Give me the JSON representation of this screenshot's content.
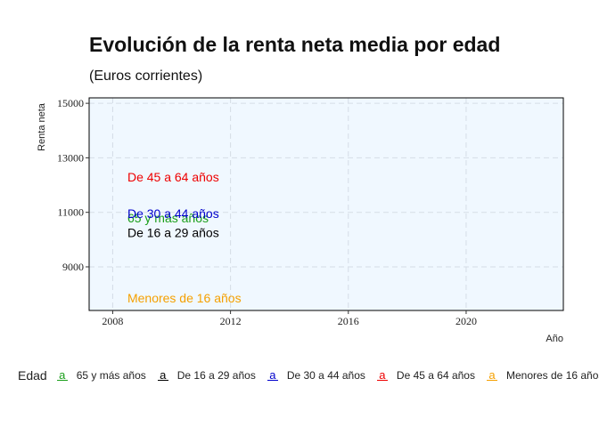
{
  "chart_data": {
    "type": "line",
    "title": "Evolución de la renta neta media por edad",
    "subtitle": "(Euros corrientes)",
    "xlabel": "Año",
    "ylabel": "Renta neta",
    "xlim": [
      2007.2,
      2023.3
    ],
    "ylim": [
      7400,
      15200
    ],
    "x_ticks": [
      2008,
      2012,
      2016,
      2020
    ],
    "y_ticks": [
      9000,
      11000,
      13000,
      15000
    ],
    "grid": true,
    "legend_title": "Edad",
    "legend_position": "bottom",
    "series": [
      {
        "name": "65 y más años",
        "color": "#1a9e1a",
        "label": {
          "x": 2008.5,
          "y": 10800
        },
        "values": []
      },
      {
        "name": "De 16 a 29 años",
        "color": "#000000",
        "label": {
          "x": 2008.5,
          "y": 10250
        },
        "values": []
      },
      {
        "name": "De 30 a 44 años",
        "color": "#0000cc",
        "label": {
          "x": 2008.5,
          "y": 10950
        },
        "values": []
      },
      {
        "name": "De 45 a 64 años",
        "color": "#ee0000",
        "label": {
          "x": 2008.5,
          "y": 12300
        },
        "values": []
      },
      {
        "name": "Menores de 16 años",
        "color": "#f5a000",
        "label": {
          "x": 2008.5,
          "y": 7850
        },
        "values": []
      }
    ]
  }
}
